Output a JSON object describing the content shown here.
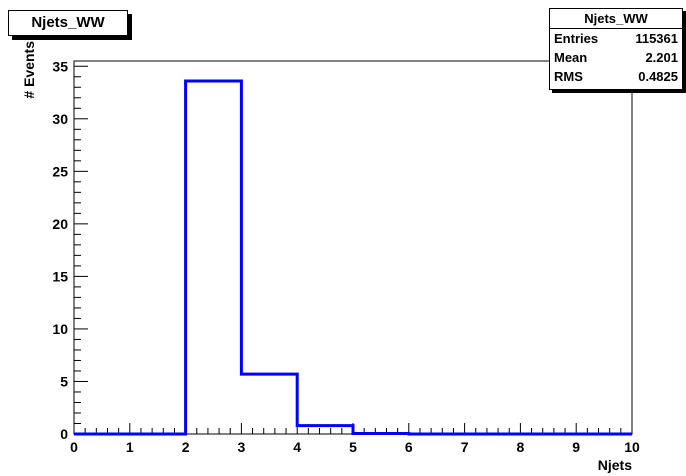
{
  "chart_data": {
    "type": "bar",
    "histogram_name": "Njets_WW",
    "title": "Njets_WW",
    "xlabel": "Njets",
    "ylabel": "# Events",
    "bin_edges": [
      0,
      1,
      2,
      3,
      4,
      5,
      6,
      7,
      8,
      9,
      10
    ],
    "values": [
      0,
      0,
      33.6,
      5.7,
      0.8,
      0.05,
      0,
      0,
      0,
      0
    ],
    "xlim": [
      0,
      10
    ],
    "ylim": [
      0,
      35.5
    ],
    "xticks": [
      "0",
      "1",
      "2",
      "3",
      "4",
      "5",
      "6",
      "7",
      "8",
      "9",
      "10"
    ],
    "yticks": [
      "0",
      "5",
      "10",
      "15",
      "20",
      "25",
      "30",
      "35"
    ],
    "ytick_values": [
      0,
      5,
      10,
      15,
      20,
      25,
      30,
      35
    ],
    "grid": false,
    "line_color": "#0000ff",
    "stats": {
      "name": "Njets_WW",
      "entries_label": "Entries",
      "entries_value": "115361",
      "mean_label": "Mean",
      "mean_value": "2.201",
      "rms_label": "RMS",
      "rms_value": "0.4825"
    }
  }
}
